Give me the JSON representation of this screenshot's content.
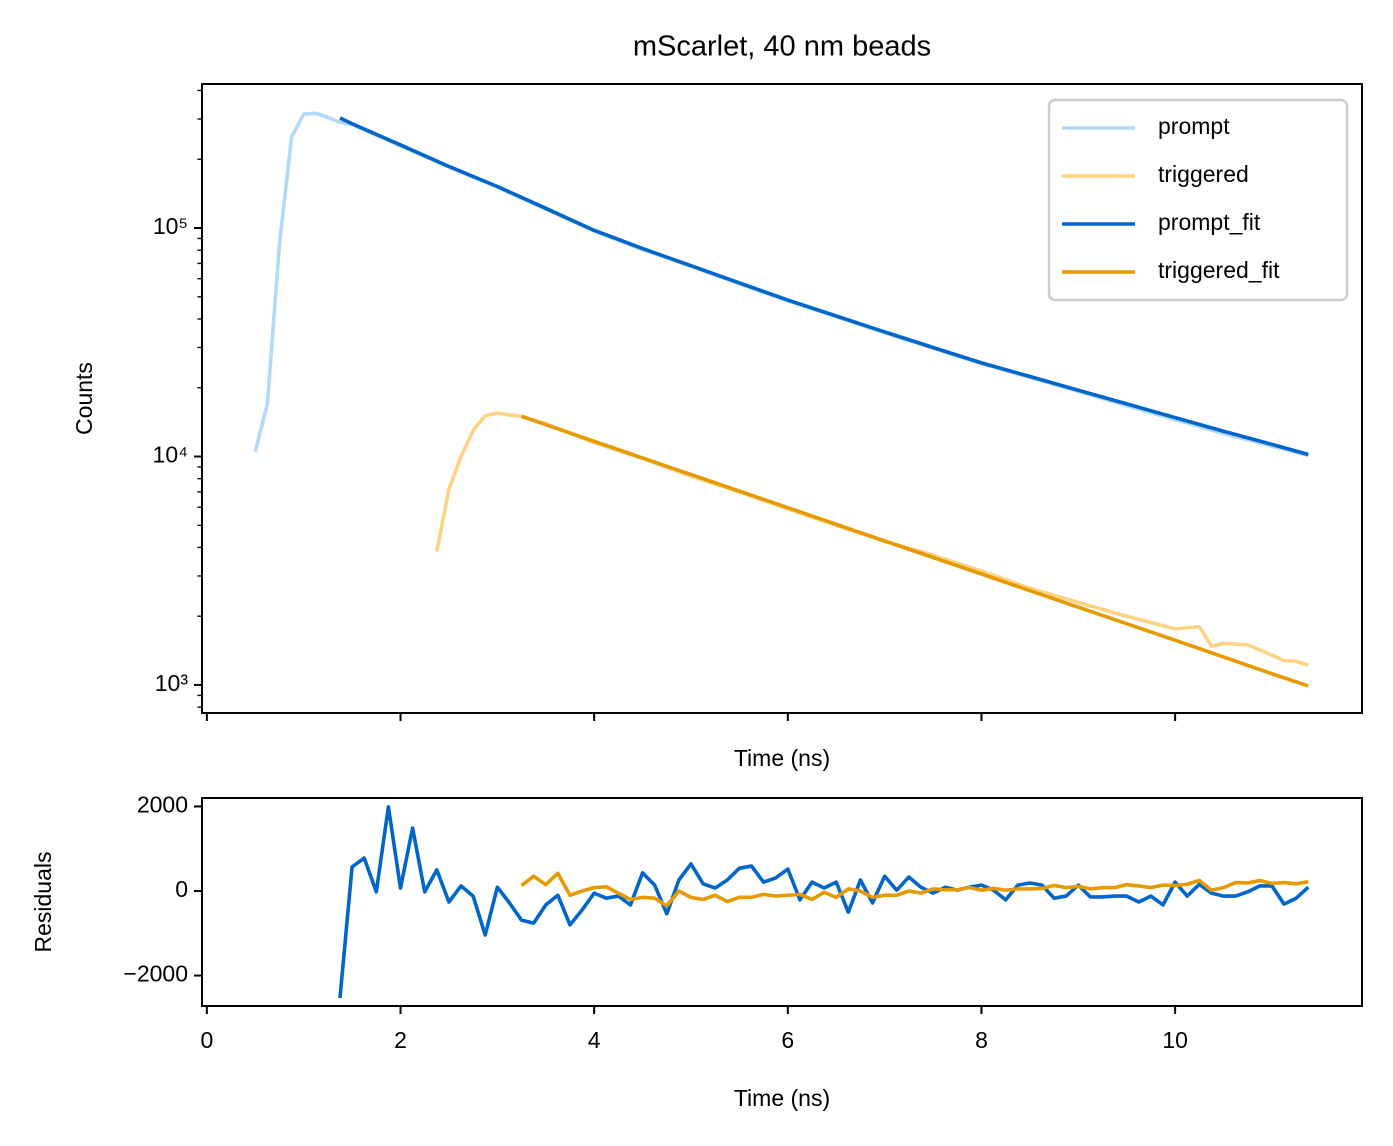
{
  "chart_data": [
    {
      "type": "line",
      "title": "mScarlet, 40 nm beads",
      "xlabel": "Time (ns)",
      "ylabel": "Counts",
      "yscale": "log",
      "legend": "upper right",
      "xtick_labels": false,
      "xlim": [
        -0.05,
        11.93
      ],
      "xticks": [
        0,
        2,
        4,
        6,
        8,
        10
      ],
      "ylim": [
        754,
        427000
      ],
      "yticks": [
        {
          "value": 1000,
          "label": "10³"
        },
        {
          "value": 10000,
          "label": "10⁴"
        },
        {
          "value": 100000,
          "label": "10⁵"
        }
      ],
      "series": [
        {
          "name": "prompt",
          "color": "#b4d8fa",
          "x": [
            0.5,
            0.625,
            0.75,
            0.875,
            1.0,
            1.125,
            1.25,
            1.375,
            1.5,
            2,
            2.5,
            3,
            3.5,
            4,
            4.5,
            5,
            5.5,
            6,
            6.5,
            7,
            7.5,
            8,
            8.5,
            9,
            9.5,
            10,
            10.5,
            11,
            11.375
          ],
          "values": [
            10500,
            17000,
            85000,
            250000,
            315000,
            318000,
            305000,
            290000,
            284000,
            229000,
            185000,
            151000,
            121000,
            97000,
            80500,
            68000,
            57000,
            48000,
            41000,
            34800,
            29800,
            25500,
            22200,
            19300,
            16700,
            14500,
            12600,
            11100,
            10100
          ]
        },
        {
          "name": "triggered",
          "color": "#fdd283",
          "x": [
            2.375,
            2.5,
            2.625,
            2.75,
            2.875,
            3,
            3.125,
            3.25,
            3.5,
            4,
            4.5,
            5,
            5.5,
            6,
            6.5,
            7,
            7.5,
            8,
            8.5,
            9,
            9.5,
            10,
            10.25,
            10.375,
            10.5,
            10.75,
            11,
            11.125,
            11.25,
            11.375
          ],
          "values": [
            3840,
            7200,
            10000,
            13000,
            15100,
            15500,
            15200,
            15000,
            13900,
            11500,
            9800,
            8200,
            7000,
            5900,
            5000,
            4250,
            3700,
            3150,
            2650,
            2300,
            2000,
            1760,
            1800,
            1480,
            1520,
            1500,
            1350,
            1280,
            1270,
            1220
          ]
        },
        {
          "name": "prompt_fit",
          "color": "#0066cc",
          "x": [
            1.375,
            1.5,
            2,
            2.5,
            3,
            3.5,
            4,
            4.5,
            5,
            5.5,
            6,
            6.5,
            7,
            7.5,
            8,
            8.5,
            9,
            9.5,
            10,
            10.5,
            11,
            11.375
          ],
          "values": [
            303000,
            286000,
            231000,
            186000,
            152000,
            122000,
            97700,
            81300,
            68400,
            57500,
            48400,
            41200,
            35100,
            30000,
            25700,
            22400,
            19500,
            17000,
            14800,
            12900,
            11300,
            10200
          ]
        },
        {
          "name": "triggered_fit",
          "color": "#e69a00",
          "x": [
            3.25,
            4,
            5,
            6,
            7,
            8,
            9,
            10,
            11,
            11.375
          ],
          "values": [
            15000,
            11650,
            8340,
            5970,
            4270,
            3060,
            2190,
            1570,
            1120,
            990
          ]
        }
      ]
    },
    {
      "type": "line",
      "xlabel": "Time (ns)",
      "ylabel": "Residuals",
      "xtick_labels": true,
      "xlim": [
        -0.05,
        11.93
      ],
      "xticks": [
        0,
        2,
        4,
        6,
        8,
        10
      ],
      "ylim": [
        -2720,
        2200
      ],
      "yticks": [
        {
          "value": -2000,
          "label": "−2000"
        },
        0,
        2000
      ],
      "series": [
        {
          "color": "#0066cc",
          "x": [
            1.375,
            1.5,
            1.625,
            1.75,
            1.875,
            2,
            2.125,
            2.25,
            2.375,
            2.5,
            2.625,
            2.75,
            2.875,
            3,
            3.125,
            3.25,
            3.375,
            3.5,
            3.625,
            3.75,
            3.875,
            4,
            4.125,
            4.25,
            4.375,
            4.5,
            4.625,
            4.75,
            4.875,
            5,
            5.125,
            5.25,
            5.375,
            5.5,
            5.625,
            5.75,
            5.875,
            6,
            6.125,
            6.25,
            6.375,
            6.5,
            6.625,
            6.75,
            6.875,
            7,
            7.125,
            7.25,
            7.375,
            7.5,
            7.625,
            7.75,
            7.875,
            8,
            8.125,
            8.25,
            8.375,
            8.5,
            8.625,
            8.75,
            8.875,
            9,
            9.125,
            9.25,
            9.375,
            9.5,
            9.625,
            9.75,
            9.875,
            10,
            10.125,
            10.25,
            10.375,
            10.5,
            10.625,
            10.75,
            10.875,
            11,
            11.125,
            11.25,
            11.375
          ],
          "values": [
            -2530,
            570,
            780,
            -20,
            1990,
            70,
            1490,
            -20,
            500,
            -260,
            120,
            -120,
            -1040,
            90,
            -280,
            -690,
            -760,
            -330,
            -100,
            -800,
            -450,
            -50,
            -170,
            -120,
            -330,
            430,
            140,
            -540,
            260,
            640,
            170,
            70,
            260,
            540,
            590,
            210,
            310,
            520,
            -210,
            210,
            70,
            210,
            -500,
            260,
            -280,
            350,
            20,
            330,
            90,
            -50,
            90,
            20,
            90,
            140,
            20,
            -210,
            140,
            190,
            140,
            -170,
            -120,
            140,
            -140,
            -140,
            -120,
            -120,
            -260,
            -120,
            -330,
            210,
            -120,
            160,
            -50,
            -120,
            -120,
            -20,
            120,
            120,
            -310,
            -170,
            90
          ]
        },
        {
          "color": "#e69a00",
          "x": [
            3.25,
            3.375,
            3.5,
            3.625,
            3.75,
            3.875,
            4,
            4.125,
            4.25,
            4.375,
            4.5,
            4.625,
            4.75,
            4.875,
            5,
            5.125,
            5.25,
            5.375,
            5.5,
            5.625,
            5.75,
            5.875,
            6,
            6.125,
            6.25,
            6.375,
            6.5,
            6.625,
            6.75,
            6.875,
            7,
            7.125,
            7.25,
            7.375,
            7.5,
            7.625,
            7.75,
            7.875,
            8,
            8.125,
            8.25,
            8.375,
            8.5,
            8.625,
            8.75,
            8.875,
            9,
            9.125,
            9.25,
            9.375,
            9.5,
            9.625,
            9.75,
            9.875,
            10,
            10.125,
            10.25,
            10.375,
            10.5,
            10.625,
            10.75,
            10.875,
            11,
            11.125,
            11.25,
            11.375
          ],
          "values": [
            130,
            350,
            150,
            420,
            -100,
            0,
            80,
            100,
            -50,
            -200,
            -150,
            -170,
            -350,
            0,
            -150,
            -200,
            -100,
            -250,
            -150,
            -150,
            -80,
            -120,
            -100,
            -80,
            -200,
            -30,
            -150,
            50,
            0,
            -150,
            -100,
            -100,
            0,
            -50,
            50,
            30,
            30,
            80,
            20,
            60,
            20,
            50,
            50,
            60,
            130,
            80,
            110,
            50,
            80,
            80,
            150,
            120,
            80,
            140,
            130,
            160,
            250,
            20,
            80,
            200,
            190,
            250,
            180,
            200,
            170,
            220
          ]
        }
      ]
    }
  ]
}
